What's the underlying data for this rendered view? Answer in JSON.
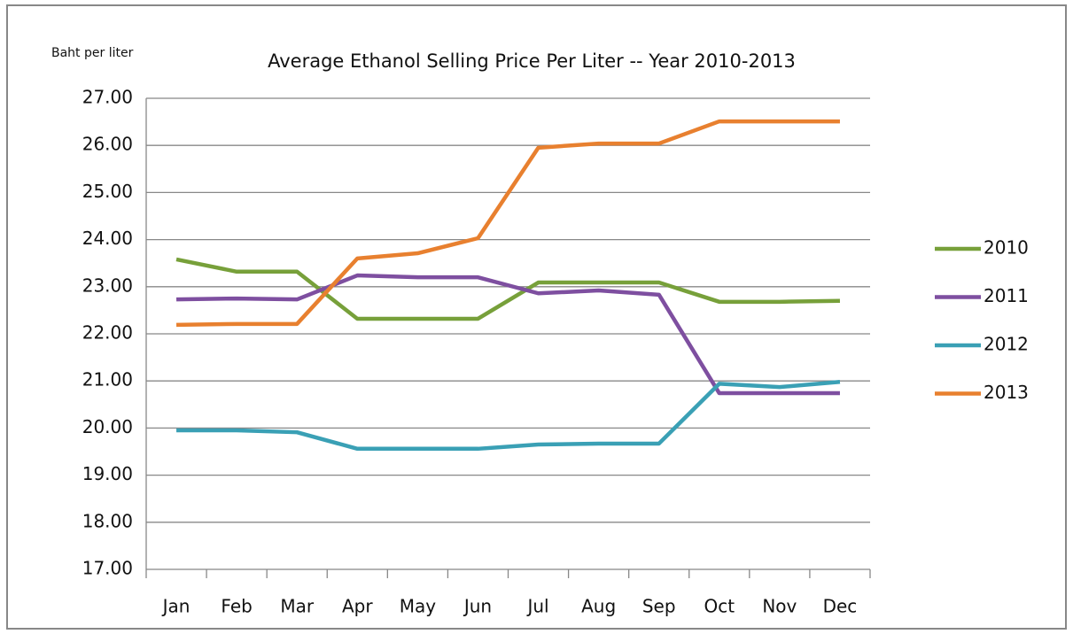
{
  "chart_data": {
    "type": "line",
    "title": "Average Ethanol Selling Price Per Liter -- Year 2010-2013",
    "y_label": "Baht per liter",
    "categories": [
      "Jan",
      "Feb",
      "Mar",
      "Apr",
      "May",
      "Jun",
      "Jul",
      "Aug",
      "Sep",
      "Oct",
      "Nov",
      "Dec"
    ],
    "series": [
      {
        "name": "2010",
        "color": "#77a03a",
        "values": [
          23.58,
          23.32,
          23.32,
          22.32,
          22.32,
          22.32,
          23.09,
          23.09,
          23.09,
          22.68,
          22.68,
          22.7
        ]
      },
      {
        "name": "2011",
        "color": "#7e4fa0",
        "values": [
          22.73,
          22.75,
          22.73,
          23.24,
          23.2,
          23.2,
          22.86,
          22.92,
          22.83,
          20.74,
          20.74,
          20.74
        ]
      },
      {
        "name": "2012",
        "color": "#3aa0b5",
        "values": [
          19.95,
          19.95,
          19.91,
          19.56,
          19.56,
          19.56,
          19.65,
          19.67,
          19.67,
          20.94,
          20.87,
          20.98
        ]
      },
      {
        "name": "2013",
        "color": "#e8802f",
        "values": [
          22.19,
          22.21,
          22.21,
          23.6,
          23.71,
          24.03,
          25.95,
          26.04,
          26.04,
          26.51,
          26.51,
          26.51
        ]
      }
    ],
    "ylim": [
      17,
      27
    ],
    "yticks": [
      {
        "value": 17,
        "label": "17.00"
      },
      {
        "value": 18,
        "label": "18.00"
      },
      {
        "value": 19,
        "label": "19.00"
      },
      {
        "value": 20,
        "label": "20.00"
      },
      {
        "value": 21,
        "label": "21.00"
      },
      {
        "value": 22,
        "label": "22.00"
      },
      {
        "value": 23,
        "label": "23.00"
      },
      {
        "value": 24,
        "label": "24.00"
      },
      {
        "value": 25,
        "label": "25.00"
      },
      {
        "value": 26,
        "label": "26.00"
      },
      {
        "value": 27,
        "label": "27.00"
      }
    ],
    "grid": true,
    "legend": "right"
  }
}
